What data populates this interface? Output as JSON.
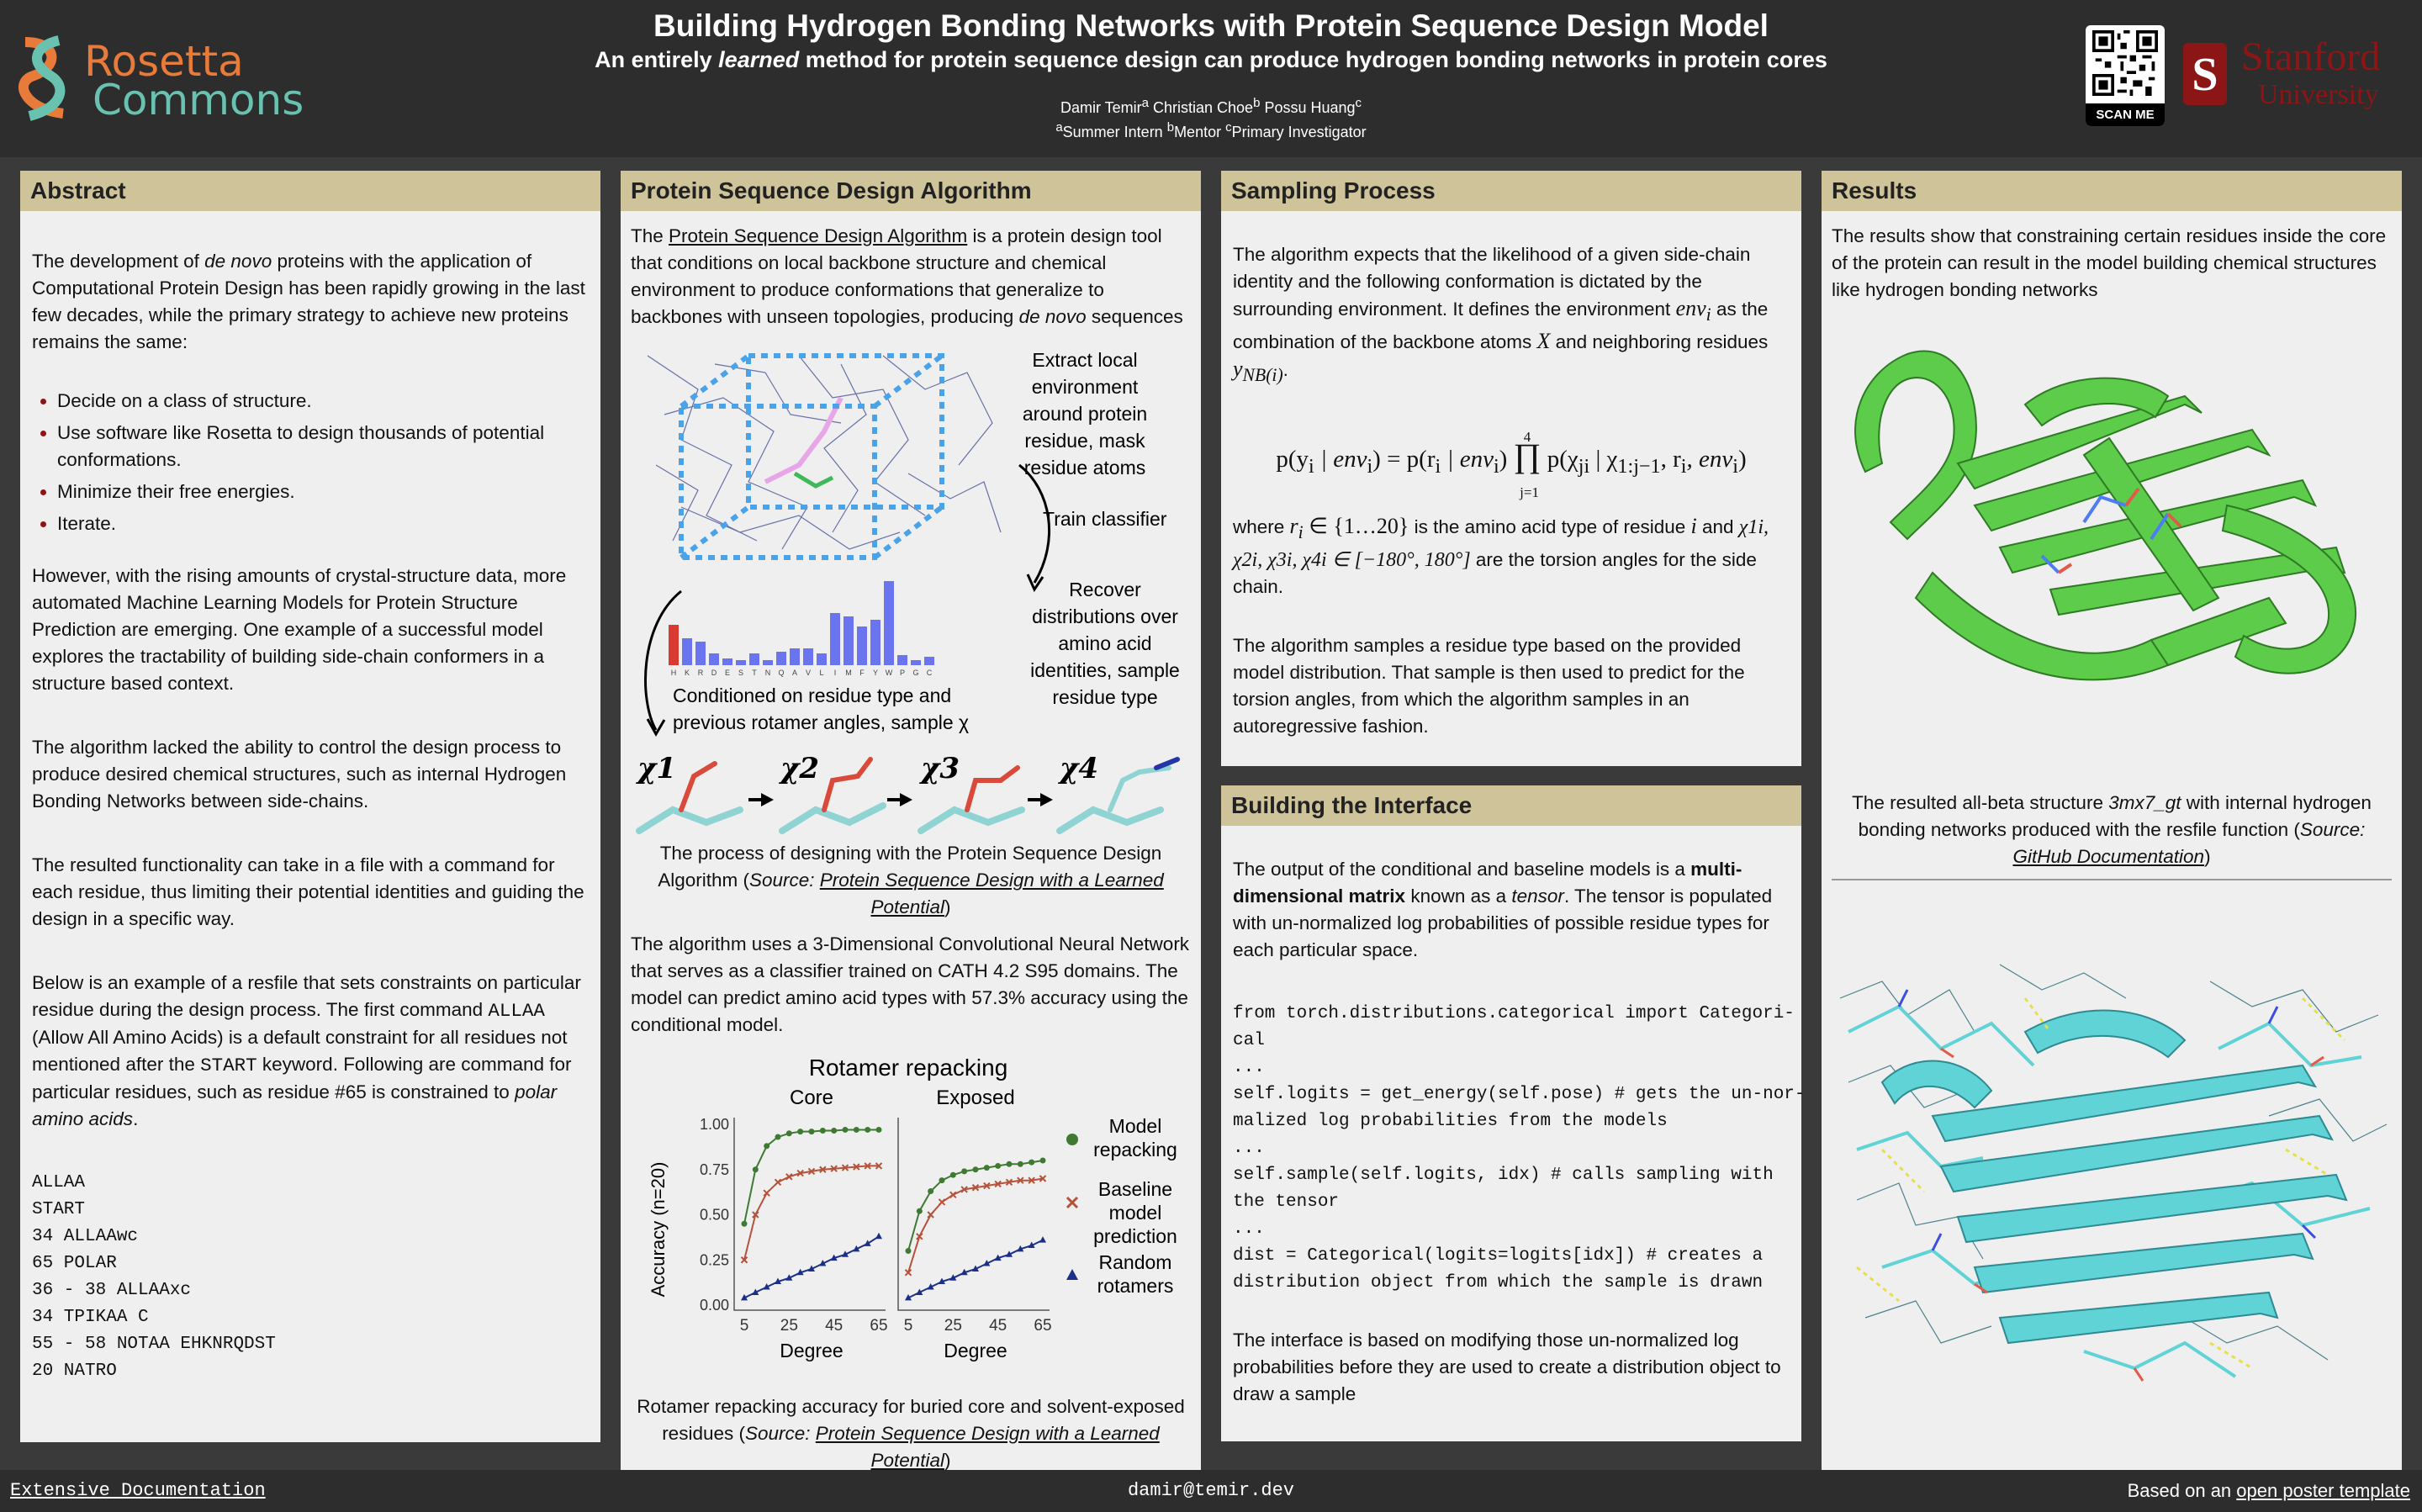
{
  "header": {
    "title": "Building Hydrogen Bonding Networks with Protein Sequence Design Model",
    "subtitle_pre": "An entirely ",
    "subtitle_em": "learned",
    "subtitle_post": " method for protein sequence design can produce hydrogen bonding networks in protein cores",
    "author1": "Damir Temir",
    "author2": "Christian Choe",
    "author3": "Possu Huang",
    "sup_a": "a",
    "sup_b": "b",
    "sup_c": "c",
    "affil1": "Summer Intern",
    "affil2": "Mentor",
    "affil3": "Primary Investigator",
    "logo_left_1": "Rosetta",
    "logo_left_2": "Commons",
    "qr_caption": "SCAN ME",
    "logo_right_1": "Stanford",
    "logo_right_2": "University"
  },
  "abstract": {
    "heading": "Abstract",
    "p1_pre": "The development of ",
    "p1_em": "de novo",
    "p1_post": " proteins with the application of Computational Protein Design has been rapidly growing in the last few decades, while the primary strategy to achieve new proteins remains the same:",
    "bullets": [
      "Decide on a class of structure.",
      "Use software like Rosetta to design thousands of potential conformations.",
      "Minimize their free energies.",
      "Iterate."
    ],
    "p2": "However, with the rising amounts of crystal-structure data, more automated Machine Learning Models for Protein Structure Prediction are emerging. One example of a successful model explores the tractability of building side-chain conformers in a structure based context.",
    "p3": "The algorithm lacked the ability to control the design process to produce desired chemical structures, such as internal Hydrogen Bonding Networks between side-chains.",
    "p4": "The resulted functionality can take in a file with a command for each residue, thus limiting their potential identities and guiding the design in a specific way.",
    "p5_a": "Below is an example of a resfile that sets constraints on particular residue during the design process. The first command ",
    "p5_code1": "ALLAA",
    "p5_b": " (Allow All Amino Acids) is a default constraint for all residues not mentioned after the ",
    "p5_code2": "START",
    "p5_c": " keyword. Following are command for particular residues, such as residue #65 is constrained to ",
    "p5_em": "polar amino acids",
    "p5_d": ".",
    "resfile": "ALLAA\nSTART\n34 ALLAAwc\n65 POLAR\n36 - 38 ALLAAxc\n34 TPIKAA C\n55 - 58 NOTAA EHKNRQDST\n20 NATRO"
  },
  "algorithm": {
    "heading": "Protein Sequence Design Algorithm",
    "p1_pre": "The ",
    "p1_link": "Protein Sequence Design Algorithm",
    "p1_mid": " is a protein design tool that conditions on local backbone structure and chemical environment to produce conformations that generalize to backbones with unseen topologies, producing ",
    "p1_em": "de novo",
    "p1_post": " sequences",
    "fig_extract": "Extract local environment around protein residue, mask residue atoms",
    "fig_train": "Train classifier",
    "fig_recover": "Recover distributions over amino acid identities, sample residue type",
    "fig_condition": "Conditioned on residue type and previous rotamer angles, sample χ",
    "fig_aa": [
      "H",
      "K",
      "R",
      "D",
      "E",
      "S",
      "T",
      "N",
      "Q",
      "A",
      "V",
      "L",
      "I",
      "M",
      "F",
      "Y",
      "W",
      "P",
      "G",
      "C"
    ],
    "fig_chi": [
      "χ1",
      "χ2",
      "χ3",
      "χ4"
    ],
    "cap1_pre": "The process of designing with the Protein Sequence Design Algorithm (",
    "cap1_src": "Source: ",
    "cap1_link": "Protein Sequence Design with a Learned Potential",
    "cap1_post": ")",
    "p2": "The algorithm uses a 3-Dimensional Convolutional Neural Network that serves as a classifier trained on CATH 4.2 S95 domains. The model can predict amino acid types with 57.3% accuracy using the conditional model.",
    "cap2_pre": "Rotamer repacking accuracy for buried core and solvent-exposed residues (",
    "cap2_src": "Source: ",
    "cap2_link": "Protein Sequence Design with a Learned Potential",
    "cap2_post": ")"
  },
  "chart_data": {
    "type": "line",
    "title": "Rotamer repacking",
    "panels": [
      "Core",
      "Exposed"
    ],
    "xlabel": "Degree",
    "ylabel": "Accuracy (n=20)",
    "xticks": [
      5,
      25,
      45,
      65
    ],
    "yticks": [
      "0.00",
      "0.25",
      "0.50",
      "0.75",
      "1.00"
    ],
    "ylim": [
      0,
      1
    ],
    "x": [
      5,
      10,
      15,
      20,
      25,
      30,
      35,
      40,
      45,
      50,
      55,
      60,
      65
    ],
    "series": [
      {
        "name": "Model repacking",
        "color": "#3f7a33",
        "marker": "circle",
        "core": [
          0.45,
          0.75,
          0.88,
          0.93,
          0.95,
          0.96,
          0.96,
          0.965,
          0.965,
          0.97,
          0.97,
          0.97,
          0.97
        ],
        "exposed": [
          0.3,
          0.52,
          0.63,
          0.69,
          0.72,
          0.74,
          0.75,
          0.76,
          0.77,
          0.78,
          0.78,
          0.79,
          0.8
        ]
      },
      {
        "name": "Baseline model prediction",
        "color": "#b5523a",
        "marker": "x",
        "core": [
          0.25,
          0.5,
          0.62,
          0.68,
          0.71,
          0.73,
          0.74,
          0.75,
          0.755,
          0.76,
          0.765,
          0.77,
          0.77
        ],
        "exposed": [
          0.18,
          0.38,
          0.5,
          0.57,
          0.61,
          0.64,
          0.65,
          0.66,
          0.67,
          0.68,
          0.69,
          0.69,
          0.7
        ]
      },
      {
        "name": "Random rotamers",
        "color": "#1b2f86",
        "marker": "triangle",
        "core": [
          0.04,
          0.07,
          0.1,
          0.13,
          0.15,
          0.18,
          0.2,
          0.23,
          0.26,
          0.28,
          0.31,
          0.34,
          0.38
        ],
        "exposed": [
          0.04,
          0.07,
          0.1,
          0.13,
          0.15,
          0.18,
          0.2,
          0.23,
          0.26,
          0.28,
          0.31,
          0.33,
          0.36
        ]
      }
    ],
    "legend": "right"
  },
  "sampling": {
    "heading": "Sampling Process",
    "p1_a": "The algorithm expects that the likelihood of a given side-chain identity and the following conformation is dictated by the surrounding environment. It defines the environment ",
    "p1_env": "env",
    "p1_env_sub": "i",
    "p1_b": " as the combination of the backbone atoms ",
    "p1_X": "X",
    "p1_c": " and neighboring residues ",
    "p1_y": "y",
    "p1_y_sub": "NB(i)",
    "p1_d": ".",
    "eq_left": "p(y",
    "eq_i": "i",
    "eq_mid": " | env",
    "eq_rhs1": ") = p(r",
    "eq_rhs2": " | env",
    "eq_rhs3": ") ",
    "eq_prod": "∏",
    "eq_prod_top": "4",
    "eq_prod_bot": "j=1",
    "eq_rhs4": " p(χ",
    "eq_ji": "ji",
    "eq_rhs5": " | χ",
    "eq_sub2": "1:j−1",
    "eq_rhs6": ", r",
    "eq_rhs7": ", env",
    "eq_rhs8": ")",
    "p2_a": "where ",
    "p2_ri": "r",
    "p2_set": " ∈ {1…20}",
    "p2_b": " is the amino acid type of residue ",
    "p2_i": "i",
    "p2_c": " and ",
    "p2_chis": "χ1i, χ2i, χ3i, χ4i ∈ [−180°, 180°]",
    "p2_d": " are the torsion angles for the side chain.",
    "p3": "The algorithm samples a residue type based on the provided model distribution. That sample is then used to predict for the torsion angles, from which the algorithm samples in an autoregressive fashion."
  },
  "interface": {
    "heading": "Building the Interface",
    "p1_a": "The output of the conditional and baseline models is a ",
    "p1_b": "multi-dimensional matrix",
    "p1_c": " known as a ",
    "p1_em": "tensor",
    "p1_d": ". The tensor is populated with un-normalized log probabilities of possible residue types for each particular space.",
    "code": "from torch.distributions.categorical import Categori-\ncal\n...\nself.logits = get_energy(self.pose) # gets the un-nor-\nmalized log probabilities from the models\n...\nself.sample(self.logits, idx) # calls sampling with\nthe tensor\n...\ndist = Categorical(logits=logits[idx]) # creates a\ndistribution object from which the sample is drawn",
    "p2": "The interface is based on modifying those un-normalized log probabilities before they are used to create a distribution object to draw a sample"
  },
  "results": {
    "heading": "Results",
    "p1": "The results show that constraining certain residues inside the core of the protein can result in the model building chemical structures like hydrogen bonding networks",
    "cap_a": "The resulted all-beta structure ",
    "cap_em": "3mx7_gt",
    "cap_b": " with internal hydrogen bonding networks produced with the resfile function (",
    "cap_src": "Source: ",
    "cap_link": "GitHub Documentation",
    "cap_c": ")"
  },
  "footer": {
    "left": "Extensive Documentation",
    "center": "damir@temir.dev",
    "right_pre": "Based on an ",
    "right_link": "open poster template"
  },
  "colors": {
    "header_bg": "#2d2d2d",
    "section_header": "#cfc39a",
    "panel_bg": "#efefef",
    "accent_red": "#8c1515",
    "protein_green": "#5ccc4a",
    "protein_cyan": "#5fd3d6",
    "bar_blue": "#6a74ee",
    "bar_red": "#d93b33"
  }
}
